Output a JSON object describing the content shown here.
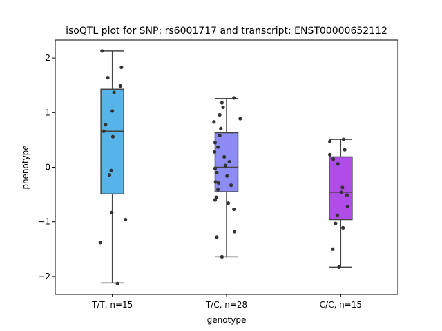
{
  "chart_data": {
    "type": "box",
    "title": "isoQTL plot for SNP: rs6001717 and transcript: ENST00000652112",
    "xlabel": "genotype",
    "ylabel": "phenotype",
    "ylim": [
      -2.33,
      2.33
    ],
    "yticks": [
      -2,
      -1,
      0,
      1,
      2
    ],
    "ytick_labels": [
      "−2",
      "−1",
      "0",
      "1",
      "2"
    ],
    "grid": false,
    "categories": [
      "T/T, n=15",
      "T/C, n=28",
      "C/C, n=15"
    ],
    "colors": [
      "#56b4e9",
      "#8c8cf4",
      "#b04ce8"
    ],
    "boxes": [
      {
        "whislo": -2.12,
        "q1": -0.49,
        "med": 0.66,
        "q3": 1.43,
        "whishi": 2.13
      },
      {
        "whislo": -1.64,
        "q1": -0.45,
        "med": 0.0,
        "q3": 0.63,
        "whishi": 1.26
      },
      {
        "whislo": -1.83,
        "q1": -0.96,
        "med": -0.46,
        "q3": 0.19,
        "whishi": 0.51
      }
    ],
    "points": [
      [
        {
          "j": -0.18,
          "y": 2.13
        },
        {
          "j": 0.16,
          "y": 1.83
        },
        {
          "j": -0.08,
          "y": 1.64
        },
        {
          "j": 0.14,
          "y": 1.49
        },
        {
          "j": 0.03,
          "y": 1.37
        },
        {
          "j": 0.0,
          "y": 1.03
        },
        {
          "j": -0.12,
          "y": 0.78
        },
        {
          "j": -0.15,
          "y": 0.66
        },
        {
          "j": 0.01,
          "y": 0.56
        },
        {
          "j": -0.02,
          "y": -0.06
        },
        {
          "j": -0.05,
          "y": -0.14
        },
        {
          "j": -0.01,
          "y": -0.83
        },
        {
          "j": 0.23,
          "y": -0.96
        },
        {
          "j": -0.21,
          "y": -1.38
        },
        {
          "j": 0.09,
          "y": -2.13
        }
      ],
      [
        {
          "j": 0.13,
          "y": 1.27
        },
        {
          "j": -0.08,
          "y": 1.18
        },
        {
          "j": -0.06,
          "y": 1.1
        },
        {
          "j": -0.12,
          "y": 0.96
        },
        {
          "j": 0.24,
          "y": 0.89
        },
        {
          "j": -0.22,
          "y": 0.83
        },
        {
          "j": -0.1,
          "y": 0.71
        },
        {
          "j": -0.12,
          "y": 0.58
        },
        {
          "j": -0.2,
          "y": 0.45
        },
        {
          "j": -0.15,
          "y": 0.37
        },
        {
          "j": -0.21,
          "y": 0.28
        },
        {
          "j": -0.04,
          "y": 0.19
        },
        {
          "j": 0.05,
          "y": 0.1
        },
        {
          "j": -0.02,
          "y": 0.03
        },
        {
          "j": -0.2,
          "y": -0.02
        },
        {
          "j": -0.17,
          "y": -0.1
        },
        {
          "j": 0.01,
          "y": -0.16
        },
        {
          "j": -0.19,
          "y": -0.27
        },
        {
          "j": -0.14,
          "y": -0.29
        },
        {
          "j": 0.08,
          "y": -0.33
        },
        {
          "j": -0.15,
          "y": -0.41
        },
        {
          "j": -0.18,
          "y": -0.55
        },
        {
          "j": -0.2,
          "y": -0.6
        },
        {
          "j": 0.03,
          "y": -0.66
        },
        {
          "j": 0.13,
          "y": -0.77
        },
        {
          "j": 0.14,
          "y": -1.18
        },
        {
          "j": -0.17,
          "y": -1.28
        },
        {
          "j": -0.08,
          "y": -1.64
        }
      ],
      [
        {
          "j": 0.05,
          "y": 0.51
        },
        {
          "j": -0.19,
          "y": 0.47
        },
        {
          "j": 0.07,
          "y": 0.32
        },
        {
          "j": -0.19,
          "y": 0.23
        },
        {
          "j": -0.13,
          "y": 0.15
        },
        {
          "j": -0.05,
          "y": 0.06
        },
        {
          "j": 0.03,
          "y": -0.37
        },
        {
          "j": 0.01,
          "y": -0.46
        },
        {
          "j": 0.11,
          "y": -0.51
        },
        {
          "j": 0.12,
          "y": -0.72
        },
        {
          "j": -0.06,
          "y": -0.88
        },
        {
          "j": -0.09,
          "y": -1.03
        },
        {
          "j": 0.04,
          "y": -1.11
        },
        {
          "j": -0.14,
          "y": -1.5
        },
        {
          "j": -0.03,
          "y": -1.83
        }
      ]
    ]
  }
}
